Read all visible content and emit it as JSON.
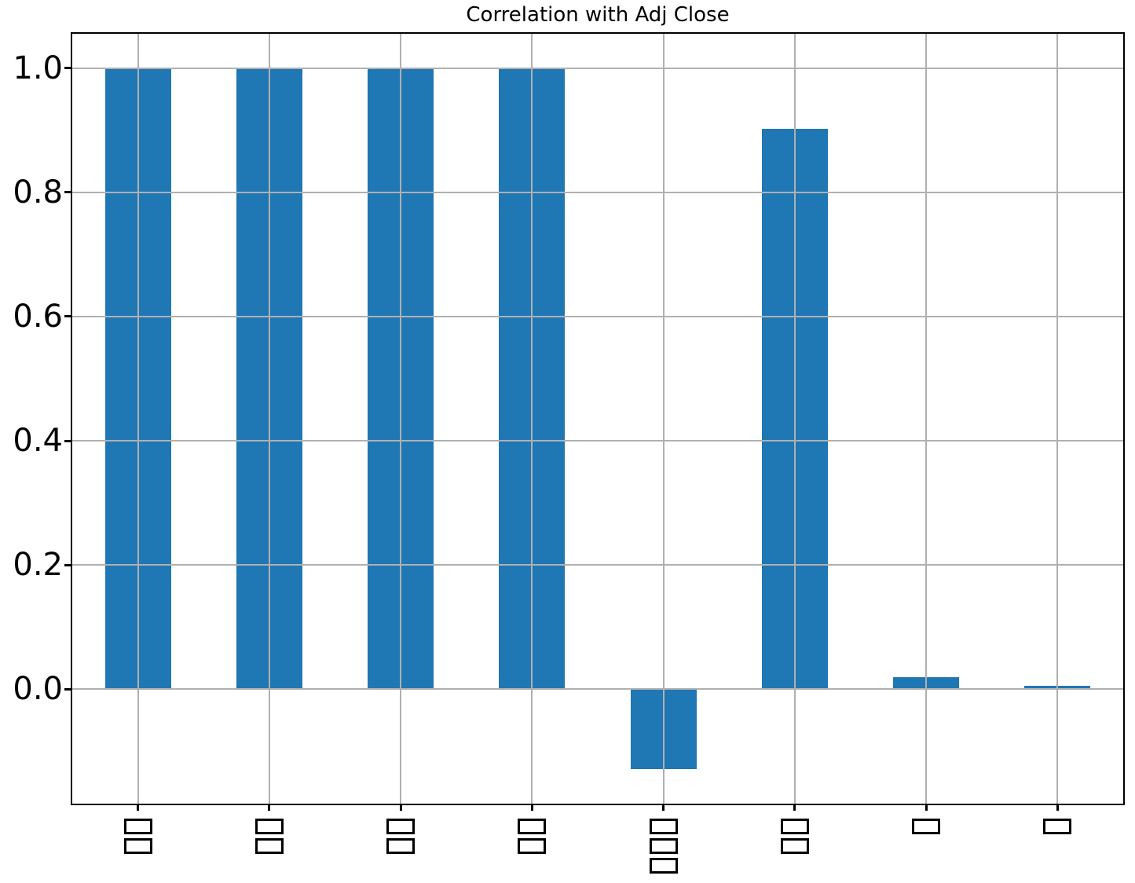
{
  "chart_data": {
    "type": "bar",
    "title": "Correlation with Adj Close",
    "xlabel": "",
    "ylabel": "",
    "categories": [
      "□□",
      "□□",
      "□□",
      "□□",
      "□□□",
      "□□",
      "□",
      "□"
    ],
    "values": [
      1.0,
      1.0,
      1.0,
      1.0,
      -0.128,
      0.902,
      0.02,
      0.006
    ],
    "ytick_labels": [
      "0.0",
      "0.2",
      "0.4",
      "0.6",
      "0.8",
      "1.0"
    ],
    "ytick_values": [
      0.0,
      0.2,
      0.4,
      0.6,
      0.8,
      1.0
    ],
    "ylim": [
      -0.184,
      1.055
    ],
    "bar_color": "#1f77b4",
    "grid_color": "#b0b0b0",
    "axis_color": "#000000",
    "grid": "both",
    "grid_above_bars": true,
    "legend_position": "none",
    "xtick_label_style": "rotated-90-missing-glyph-boxes"
  }
}
